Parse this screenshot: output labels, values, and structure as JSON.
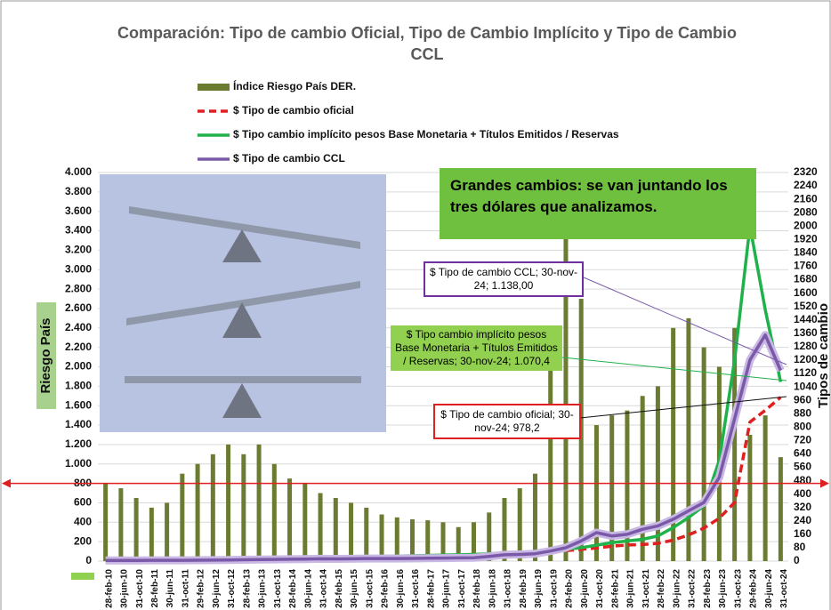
{
  "chart_data": {
    "type": "bar-line",
    "title": "Comparación: Tipo de cambio Oficial, Tipo de Cambio Implícito y Tipo de Cambio CCL",
    "ylabel": "Riesgo País",
    "y2label": "Tipos de cambio",
    "categories": [
      "28-feb-10",
      "30-jun-10",
      "31-oct-10",
      "28-feb-11",
      "30-jun-11",
      "31-oct-11",
      "29-feb-12",
      "30-jun-12",
      "31-oct-12",
      "28-feb-13",
      "30-jun-13",
      "31-oct-13",
      "28-feb-14",
      "30-jun-14",
      "31-oct-14",
      "28-feb-15",
      "30-jun-15",
      "31-oct-15",
      "29-feb-16",
      "30-jun-16",
      "31-oct-16",
      "28-feb-17",
      "30-jun-17",
      "31-oct-17",
      "28-feb-18",
      "30-jun-18",
      "31-oct-18",
      "28-feb-19",
      "30-jun-19",
      "31-oct-19",
      "29-feb-20",
      "30-jun-20",
      "31-oct-20",
      "28-feb-21",
      "30-jun-21",
      "31-oct-21",
      "28-feb-22",
      "30-jun-22",
      "31-oct-22",
      "28-feb-23",
      "30-jun-23",
      "31-oct-23",
      "29-feb-24",
      "30-jun-24",
      "31-oct-24"
    ],
    "series": [
      {
        "name": "Índice Riesgo País DER.",
        "kind": "bar",
        "axis": "y",
        "color": "#6b7c32",
        "values": [
          800,
          750,
          650,
          550,
          600,
          900,
          1000,
          1100,
          1200,
          1100,
          1200,
          1000,
          850,
          800,
          700,
          650,
          600,
          550,
          480,
          450,
          430,
          420,
          400,
          350,
          400,
          500,
          650,
          750,
          900,
          2300,
          3400,
          2700,
          1400,
          1500,
          1550,
          1700,
          1800,
          2400,
          2500,
          2200,
          2000,
          2400,
          1300,
          1500,
          1070
        ]
      },
      {
        "name": "$ Tipo de cambio oficial",
        "kind": "line",
        "axis": "y2",
        "color": "#e02020",
        "dashed": true,
        "values": [
          3.8,
          3.9,
          3.96,
          4.0,
          4.1,
          4.2,
          4.4,
          4.5,
          4.7,
          5.0,
          5.3,
          5.8,
          8.0,
          8.1,
          8.5,
          8.6,
          9.1,
          9.5,
          14.5,
          15.0,
          15.4,
          15.6,
          17.5,
          17.5,
          18.0,
          28.5,
          36,
          39,
          43,
          59,
          62,
          70,
          78,
          89,
          96,
          99,
          106,
          125,
          156,
          197,
          256,
          350,
          830,
          900,
          978.2
        ]
      },
      {
        "name": "$ Tipo cambio implícito pesos Base Monetaria + Títulos Emitidos / Reservas",
        "kind": "line",
        "axis": "y2",
        "color": "#1fb24a",
        "values": [
          5,
          5.5,
          6,
          6.5,
          7,
          7.5,
          8,
          9,
          10,
          11,
          12,
          13,
          15,
          17,
          19,
          21,
          23,
          26,
          28,
          30,
          32,
          34,
          36,
          38,
          40,
          44,
          48,
          52,
          56,
          62,
          70,
          80,
          95,
          110,
          120,
          130,
          150,
          200,
          260,
          330,
          600,
          1200,
          2000,
          1500,
          1070
        ]
      },
      {
        "name": "$ Tipo de cambio CCL",
        "kind": "line",
        "axis": "y2",
        "color": "#7a5aa8",
        "halo": "#c9b8e4",
        "values": [
          4,
          4.2,
          4.3,
          4.4,
          4.6,
          4.9,
          5.5,
          6,
          6.5,
          8,
          9,
          10,
          11,
          12,
          14,
          13,
          14,
          15,
          15,
          15.5,
          16,
          17,
          18,
          19,
          20,
          28,
          38,
          40,
          44,
          60,
          80,
          120,
          170,
          150,
          160,
          190,
          210,
          250,
          300,
          350,
          500,
          850,
          1200,
          1350,
          1138
        ]
      }
    ],
    "ylim": [
      0,
      4000
    ],
    "yticks": [
      0,
      {
        "value": 200,
        "label": "200"
      },
      400,
      600,
      800,
      {
        "value": 1000,
        "label": "1.000"
      },
      {
        "value": 1200,
        "label": "1.200"
      },
      {
        "value": 1400,
        "label": "1.400"
      },
      {
        "value": 1600,
        "label": "1.600"
      },
      {
        "value": 1800,
        "label": "1.800"
      },
      {
        "value": 2000,
        "label": "2.000"
      },
      {
        "value": 2200,
        "label": "2.200"
      },
      {
        "value": 2400,
        "label": "2.400"
      },
      {
        "value": 2600,
        "label": "2.600"
      },
      {
        "value": 2800,
        "label": "2.800"
      },
      {
        "value": 3000,
        "label": "3.000"
      },
      {
        "value": 3200,
        "label": "3.200"
      },
      {
        "value": 3400,
        "label": "3.400"
      },
      {
        "value": 3600,
        "label": "3.600"
      },
      {
        "value": 3800,
        "label": "3.800"
      },
      {
        "value": 4000,
        "label": "4.000"
      }
    ],
    "y2lim": [
      0,
      2320
    ],
    "y2ticks": [
      0,
      80,
      160,
      240,
      320,
      400,
      480,
      560,
      640,
      720,
      800,
      880,
      960,
      1040,
      1120,
      1200,
      1280,
      1360,
      1440,
      1520,
      1600,
      1680,
      1760,
      1840,
      1920,
      2000,
      2080,
      2160,
      2240,
      2320
    ],
    "grid": true,
    "reference_line": {
      "value": 800,
      "color": "#e02020"
    },
    "annotations": {
      "headline": "Grandes cambios: se van juntando los tres dólares que analizamos.",
      "ccl": "$ Tipo de cambio CCL; 30-nov-24;  1.138,00",
      "implicit": "$ Tipo cambio implícito pesos Base Monetaria + Títulos Emitidos / Reservas; 30-nov-24; 1.070,4",
      "official": "$ Tipo de cambio oficial; 30-nov-24; 978,2"
    }
  }
}
